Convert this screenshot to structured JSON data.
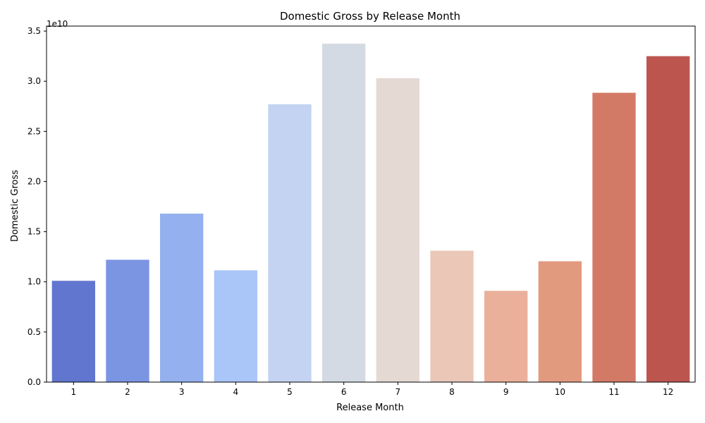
{
  "chart_data": {
    "type": "bar",
    "title": "Domestic Gross by Release Month",
    "xlabel": "Release Month",
    "ylabel": "Domestic Gross",
    "y_offset_label": "1e10",
    "y_scale": 10000000000,
    "categories": [
      "1",
      "2",
      "3",
      "4",
      "5",
      "6",
      "7",
      "8",
      "9",
      "10",
      "11",
      "12"
    ],
    "values": [
      10100000000,
      12200000000,
      16800000000,
      11150000000,
      27700000000,
      33750000000,
      30300000000,
      13100000000,
      9100000000,
      12050000000,
      28850000000,
      32500000000
    ],
    "colors": [
      "#6076cf",
      "#7b95e3",
      "#94b0ee",
      "#aac5f8",
      "#c3d3f1",
      "#d3dae4",
      "#e5d9d4",
      "#eac7b7",
      "#ebb09a",
      "#e29a7f",
      "#d37a66",
      "#bd554f"
    ],
    "ylim": [
      0,
      35500000000
    ],
    "yticks": [
      0,
      5000000000,
      10000000000,
      15000000000,
      20000000000,
      25000000000,
      30000000000,
      35000000000
    ],
    "ytick_labels": [
      "0.0",
      "0.5",
      "1.0",
      "1.5",
      "2.0",
      "2.5",
      "3.0",
      "3.5"
    ],
    "grid": false,
    "legend": "none"
  }
}
